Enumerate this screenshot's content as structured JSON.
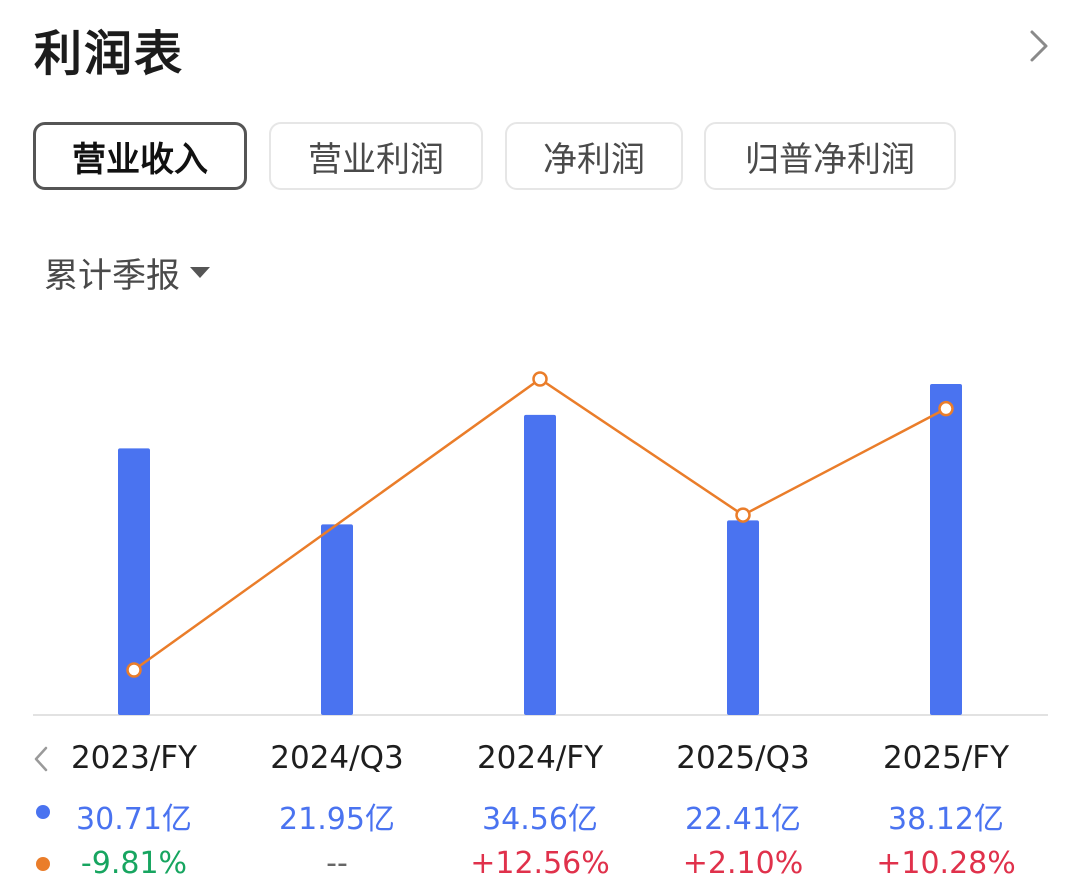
{
  "header": {
    "title": "利润表"
  },
  "tabs": [
    {
      "label": "营业收入",
      "active": true
    },
    {
      "label": "营业利润",
      "active": false
    },
    {
      "label": "净利润",
      "active": false
    },
    {
      "label": "归普净利润",
      "active": false
    }
  ],
  "period_selector": {
    "label": "累计季报"
  },
  "colors": {
    "bar": "#4a73f0",
    "line": "#ea7d2a",
    "positive": "#e0314b",
    "negative": "#17a560",
    "neutral": "#666666"
  },
  "chart_data": {
    "type": "bar",
    "categories": [
      "2023/FY",
      "2024/Q3",
      "2024/FY",
      "2025/Q3",
      "2025/FY"
    ],
    "series": [
      {
        "type": "bar",
        "values": [
          30.71,
          21.95,
          34.56,
          22.41,
          38.12
        ],
        "labels": [
          "30.71亿",
          "21.95亿",
          "34.56亿",
          "22.41亿",
          "38.12亿"
        ]
      },
      {
        "type": "line",
        "values": [
          -9.81,
          null,
          12.56,
          2.1,
          10.28
        ],
        "labels": [
          "-9.81%",
          "--",
          "+12.56%",
          "+2.10%",
          "+10.28%"
        ]
      }
    ],
    "grid": false,
    "legend": "none"
  }
}
